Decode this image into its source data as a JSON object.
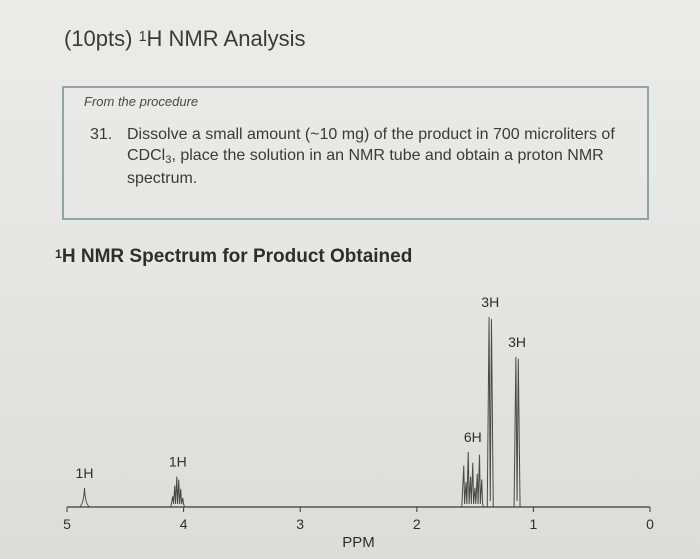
{
  "question": {
    "points": "(10pts) ",
    "isotope_sup": "1",
    "title_rest": "H NMR Analysis"
  },
  "procedure": {
    "label": "From the procedure",
    "step_number": "31.",
    "step_text_part1": "Dissolve a small amount (~10 mg) of the product in 700 microliters of CDCl",
    "step_text_sub": "3",
    "step_text_part2": ", place the solution in an NMR tube and obtain a proton NMR spectrum."
  },
  "spectrum": {
    "title_sup": "1",
    "title_rest": "H NMR Spectrum for Product Obtained",
    "xlabel": "PPM"
  },
  "chart_data": {
    "type": "line",
    "title": "1H NMR Spectrum for Product Obtained",
    "xlabel": "PPM",
    "ylabel": "",
    "xlim": [
      5,
      0
    ],
    "xticks": [
      5,
      4,
      3,
      2,
      1,
      0
    ],
    "grid": false,
    "signals": [
      {
        "ppm": 4.85,
        "integration": "1H",
        "shape": "singlet",
        "height": 0.1
      },
      {
        "ppm": 4.05,
        "integration": "1H",
        "shape": "multiplet",
        "height": 0.16
      },
      {
        "ppm": 1.52,
        "integration": "6H",
        "shape": "multiplet",
        "height": 0.29
      },
      {
        "ppm": 1.37,
        "integration": "3H",
        "shape": "singlet",
        "height": 1.0
      },
      {
        "ppm": 1.14,
        "integration": "3H",
        "shape": "singlet",
        "height": 0.79
      }
    ]
  }
}
